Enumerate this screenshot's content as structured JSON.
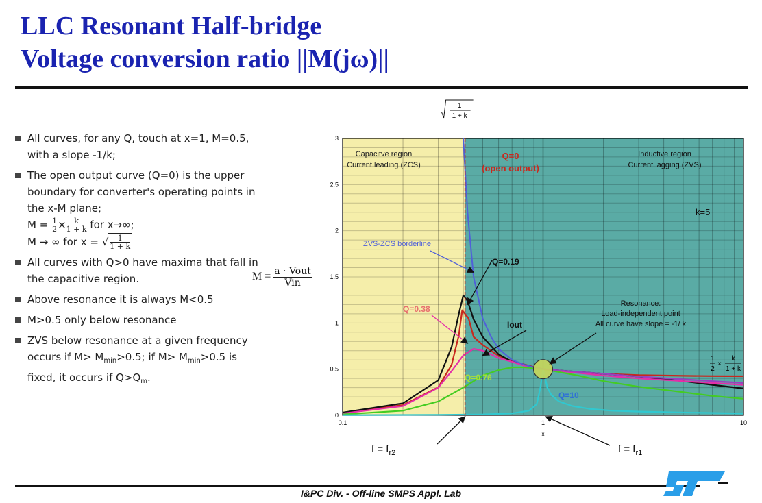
{
  "slide": {
    "title_line1": "LLC Resonant Half-bridge",
    "title_line2": "Voltage conversion ratio ||M(jω)||",
    "footer": "I&PC Div. - Off-line SMPS Appl. Lab",
    "m_label_lhs": "M =",
    "m_label_num": "a · Vout",
    "m_label_den": "Vin"
  },
  "bullets": [
    {
      "text": "All curves, for any Q, touch at x=1, M=0.5, with a slope -1/k;"
    },
    {
      "text": "The open output curve (Q=0) is the upper boundary for converter's operating points in the x-M plane;",
      "m1_lhs": "M =",
      "m1_half": "1",
      "m1_two": "2",
      "m1_times": "×",
      "m1_k": "k",
      "m1_den": "1 + k",
      "m1_rhs": "for x→∞;",
      "m2_lhs": "M → ∞ for x =",
      "m2_num": "1",
      "m2_den": "1 + k"
    },
    {
      "text": "All curves with Q>0 have maxima that fall in the capacitive region."
    },
    {
      "text": "Above resonance it is always M<0.5"
    },
    {
      "text": "M>0.5 only below resonance"
    },
    {
      "text_a": "ZVS below resonance at a given frequency occurs if M> M",
      "sub1": "min",
      "text_b": ">0.5; if M> M",
      "sub2": "min",
      "text_c": ">0.5 is fixed, it occurs if Q>Q",
      "sub3": "m",
      "text_d": "."
    }
  ],
  "chart_data": {
    "type": "line",
    "x_scale": "log",
    "xlim": [
      0.1,
      10
    ],
    "ylim": [
      0,
      3
    ],
    "xlabel": "x",
    "x_ticks": [
      "0.1",
      "1",
      "10"
    ],
    "y_ticks": [
      "0",
      "0.5",
      "1",
      "1.5",
      "2",
      "2.5",
      "3"
    ],
    "k": 5,
    "k_label": "k=5",
    "x_r2": 0.408,
    "grid": true,
    "colors": {
      "capacitive_fill": "#f5eeaa",
      "inductive_fill": "#5aaba5",
      "borderline": "#5060d8",
      "marker": "#c8d65a"
    },
    "series": [
      {
        "name": "Q=0",
        "color": "#c8281e",
        "x": [
          0.1,
          0.2,
          0.3,
          0.35,
          0.38,
          0.395,
          0.425,
          0.45,
          0.5,
          0.6,
          0.7,
          0.8,
          0.9,
          1,
          1.2,
          1.5,
          2,
          3,
          5,
          7,
          10
        ],
        "y": [
          0.026,
          0.111,
          0.304,
          0.547,
          0.867,
          1.138,
          1.05,
          0.85,
          0.762,
          0.643,
          0.588,
          0.553,
          0.524,
          0.5,
          0.481,
          0.465,
          0.45,
          0.435,
          0.428,
          0.425,
          0.423
        ]
      },
      {
        "name": "Q=0.19",
        "color": "#111111",
        "x": [
          0.1,
          0.2,
          0.3,
          0.35,
          0.38,
          0.4,
          0.42,
          0.45,
          0.5,
          0.6,
          0.7,
          0.8,
          0.9,
          1,
          1.5,
          2,
          3,
          5,
          7,
          10
        ],
        "y": [
          0.03,
          0.13,
          0.38,
          0.74,
          1.1,
          1.3,
          1.24,
          1.04,
          0.85,
          0.66,
          0.58,
          0.55,
          0.52,
          0.5,
          0.47,
          0.45,
          0.42,
          0.37,
          0.33,
          0.29
        ]
      },
      {
        "name": "Q=0.38",
        "color": "#e42ea9",
        "x": [
          0.1,
          0.2,
          0.3,
          0.35,
          0.4,
          0.45,
          0.5,
          0.55,
          0.6,
          0.7,
          0.8,
          0.9,
          1,
          1.5,
          2,
          3,
          5,
          7,
          10
        ],
        "y": [
          0.02,
          0.1,
          0.3,
          0.48,
          0.65,
          0.72,
          0.7,
          0.66,
          0.62,
          0.58,
          0.54,
          0.52,
          0.5,
          0.46,
          0.43,
          0.4,
          0.37,
          0.35,
          0.33
        ]
      },
      {
        "name": "Q=0.76",
        "color": "#44cc22",
        "x": [
          0.1,
          0.2,
          0.3,
          0.4,
          0.5,
          0.6,
          0.7,
          0.8,
          0.9,
          1,
          1.5,
          2,
          3,
          5,
          7,
          10
        ],
        "y": [
          0.01,
          0.05,
          0.15,
          0.3,
          0.43,
          0.49,
          0.52,
          0.52,
          0.51,
          0.5,
          0.43,
          0.37,
          0.31,
          0.25,
          0.21,
          0.18
        ]
      },
      {
        "name": "Q=10",
        "color": "#30c8d0",
        "x": [
          0.1,
          0.3,
          0.5,
          0.7,
          0.85,
          0.93,
          0.97,
          1,
          1.05,
          1.1,
          1.2,
          1.4,
          1.7,
          2.2,
          3,
          5,
          10
        ],
        "y": [
          0.002,
          0.005,
          0.01,
          0.02,
          0.05,
          0.12,
          0.3,
          0.5,
          0.3,
          0.22,
          0.15,
          0.1,
          0.07,
          0.05,
          0.04,
          0.03,
          0.02
        ]
      },
      {
        "name": "",
        "color": "#9a3fc0",
        "x": [
          1,
          1.5,
          2,
          3,
          5,
          7,
          10
        ],
        "y": [
          0.5,
          0.47,
          0.45,
          0.42,
          0.39,
          0.37,
          0.35
        ]
      }
    ],
    "borderline": {
      "name": "ZVS-ZCS borderline",
      "x": [
        0.4,
        0.42,
        0.45,
        0.5,
        0.55,
        0.6,
        0.7,
        0.8,
        0.9,
        1
      ],
      "y": [
        3,
        2.2,
        1.5,
        1.05,
        0.85,
        0.72,
        0.6,
        0.55,
        0.52,
        0.5
      ]
    },
    "annotations": {
      "cap_region_1": "Capacitve region",
      "cap_region_2": "Current leading (ZCS)",
      "ind_region_1": "Inductive region",
      "ind_region_2": "Current lagging (ZVS)",
      "q0_1": "Q=0",
      "q0_2": "(open output)",
      "zvs": "ZVS-ZCS borderline",
      "q019": "Q=0.19",
      "q038": "Q=0.38",
      "iout": "Iout",
      "q076": "Q=0.76",
      "q10": "Q=10",
      "res_1": "Resonance:",
      "res_2": "Load-independent point",
      "res_3": "All curve have slope = -1/ k",
      "sqrt_num": "1",
      "sqrt_den": "1 + k",
      "right_half": "1",
      "right_two": "2",
      "right_times": "×",
      "right_k": "k",
      "right_den": "1 + k",
      "fr2": "f = f",
      "fr2_sub": "r2",
      "fr1": "f = f",
      "fr1_sub": "r1"
    }
  }
}
